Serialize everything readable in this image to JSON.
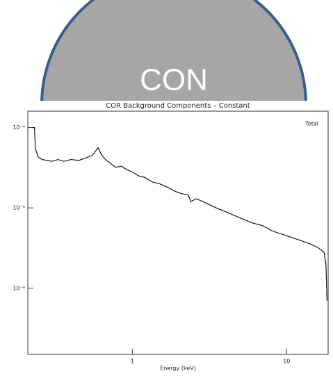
{
  "header": {
    "label": "CON"
  },
  "chart_data": {
    "type": "line",
    "title": "COR Background Components – Constant",
    "x_label": "Energy (keV)",
    "xlog": true,
    "ylog": true,
    "legend": "top-right",
    "xlim": [
      0.21,
      18.6
    ],
    "ylim": [
      1.5e-07,
      0.00016
    ],
    "xticks": [
      1,
      10
    ],
    "yticks": [
      {
        "value": 0.0001,
        "label": "10⁻⁴"
      },
      {
        "value": 1e-05,
        "label": "10⁻⁵"
      },
      {
        "value": 1e-06,
        "label": "10⁻⁶"
      }
    ],
    "x": [
      0.225,
      0.232,
      0.235,
      0.245,
      0.26,
      0.28,
      0.3,
      0.33,
      0.36,
      0.4,
      0.45,
      0.5,
      0.55,
      0.6,
      0.63,
      0.67,
      0.72,
      0.78,
      0.85,
      0.92,
      1.0,
      1.1,
      1.2,
      1.35,
      1.5,
      1.7,
      1.9,
      2.1,
      2.3,
      2.4,
      2.6,
      3.0,
      3.5,
      4.0,
      5.0,
      6.0,
      7.0,
      8.0,
      10.0,
      12.0,
      14.0,
      16.0,
      17.5,
      18.0,
      18.3
    ],
    "series": [
      {
        "name": "Total",
        "color": "#111111",
        "values": [
          0.0001,
          0.0001,
          5.5e-05,
          4.3e-05,
          4e-05,
          3.9e-05,
          3.8e-05,
          4e-05,
          3.8e-05,
          4e-05,
          3.9e-05,
          4.2e-05,
          4.5e-05,
          5.6e-05,
          4.6e-05,
          4e-05,
          3.6e-05,
          3.2e-05,
          3.3e-05,
          3e-05,
          2.8e-05,
          2.5e-05,
          2.4e-05,
          2.1e-05,
          2e-05,
          1.8e-05,
          1.6e-05,
          1.5e-05,
          1.45e-05,
          1.2e-05,
          1.3e-05,
          1.15e-05,
          1e-05,
          9e-06,
          7.5e-06,
          6.5e-06,
          6e-06,
          5.2e-06,
          4.5e-06,
          4e-06,
          3.6e-06,
          3.2e-06,
          2.8e-06,
          2e-06,
          7e-07
        ]
      }
    ]
  }
}
